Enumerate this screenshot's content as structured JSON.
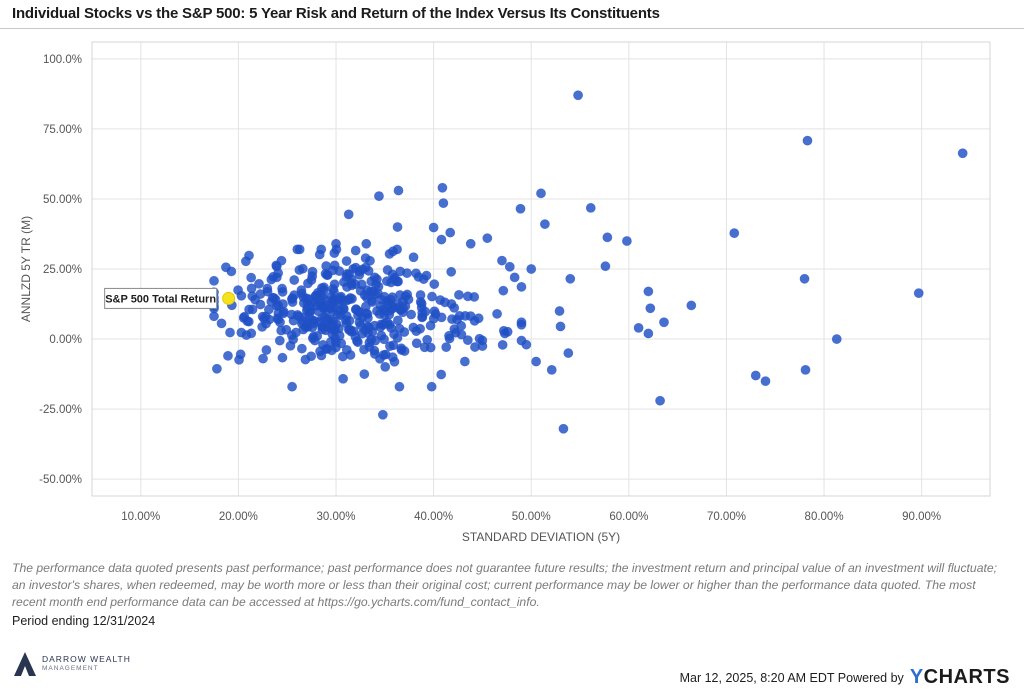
{
  "header": {
    "title": "Individual Stocks vs the S&P 500: 5 Year Risk and Return of the Index Versus Its Constituents"
  },
  "colors": {
    "point": "#1f4fc4",
    "benchmark": "#f4e21f",
    "grid": "#e3e3e3"
  },
  "chart_data": {
    "type": "scatter",
    "xlabel": "STANDARD DEVIATION (5Y)",
    "ylabel": "ANNLZD 5Y TR (M)",
    "xlim": [
      5,
      97
    ],
    "ylim": [
      -56,
      106
    ],
    "x_ticks": [
      10,
      20,
      30,
      40,
      50,
      60,
      70,
      80,
      90
    ],
    "x_tick_labels": [
      "10.00%",
      "20.00%",
      "30.00%",
      "40.00%",
      "50.00%",
      "60.00%",
      "70.00%",
      "80.00%",
      "90.00%"
    ],
    "y_ticks": [
      100,
      75,
      50,
      25,
      0,
      -25,
      -50
    ],
    "y_tick_labels": [
      "100.0%",
      "75.00%",
      "50.00%",
      "25.00%",
      "0.00%",
      "-25.00%",
      "-50.00%"
    ],
    "grid": true,
    "benchmark": {
      "label": "S&P 500 Total Return",
      "x": 19.0,
      "y": 14.5
    },
    "outlier_points": [
      [
        54.8,
        87.0
      ],
      [
        78.3,
        70.8
      ],
      [
        94.2,
        66.3
      ],
      [
        70.8,
        37.8
      ],
      [
        56.1,
        46.8
      ],
      [
        57.8,
        36.3
      ],
      [
        59.8,
        35.0
      ],
      [
        57.6,
        26.0
      ],
      [
        62.0,
        17.0
      ],
      [
        62.2,
        11.0
      ],
      [
        66.4,
        12.0
      ],
      [
        63.6,
        6.0
      ],
      [
        61.0,
        4.0
      ],
      [
        62.0,
        2.0
      ],
      [
        78.0,
        21.5
      ],
      [
        89.7,
        16.4
      ],
      [
        81.3,
        0.0
      ],
      [
        73.0,
        -13.0
      ],
      [
        74.0,
        -15.0
      ],
      [
        78.1,
        -11.0
      ],
      [
        63.2,
        -22.0
      ],
      [
        53.3,
        -32.0
      ],
      [
        53.8,
        -5.0
      ],
      [
        54.0,
        21.5
      ],
      [
        52.1,
        -11.0
      ],
      [
        51.0,
        52.0
      ],
      [
        51.4,
        41.0
      ],
      [
        48.9,
        46.5
      ],
      [
        50.0,
        25.0
      ],
      [
        52.9,
        10.0
      ],
      [
        53.0,
        4.5
      ],
      [
        50.5,
        -8.0
      ],
      [
        49.5,
        -2.0
      ],
      [
        47.0,
        28.0
      ],
      [
        48.3,
        22.0
      ],
      [
        45.5,
        36.0
      ],
      [
        41.8,
        24.0
      ],
      [
        40.9,
        54.0
      ],
      [
        41.0,
        48.5
      ],
      [
        41.7,
        38.0
      ],
      [
        40.0,
        39.8
      ],
      [
        40.8,
        35.5
      ],
      [
        43.8,
        34.0
      ],
      [
        43.2,
        -8.0
      ],
      [
        39.8,
        -17.0
      ],
      [
        34.8,
        -27.0
      ],
      [
        25.5,
        -17.0
      ],
      [
        34.4,
        51.0
      ],
      [
        36.4,
        53.0
      ],
      [
        36.3,
        40.0
      ],
      [
        31.3,
        44.5
      ],
      [
        33.1,
        34.0
      ],
      [
        30.0,
        34.0
      ],
      [
        47.3,
        2.0
      ],
      [
        49.0,
        6.0
      ],
      [
        45.0,
        -2.5
      ],
      [
        46.5,
        9.0
      ],
      [
        44.2,
        6.5
      ],
      [
        36.5,
        -17.0
      ],
      [
        32.9,
        -12.5
      ]
    ],
    "cluster": {
      "count": 420,
      "x_mean": 31.0,
      "x_sd": 6.2,
      "y_mean": 10.0,
      "y_sd": 9.5,
      "x_range": [
        17.5,
        49.0
      ],
      "y_range": [
        -16,
        32
      ],
      "seed": 1337
    }
  },
  "footer": {
    "disclaimer": "The performance data quoted presents past performance; past performance does not guarantee future results; the investment return and principal value of an investment will fluctuate; an investor's shares, when redeemed, may be worth more or less than their original cost; current performance may be lower or higher than the performance data quoted. The most recent month end performance data can be accessed at https://go.ycharts.com/fund_contact_info.",
    "period": "Period ending 12/31/2024",
    "logo_line1": "DARROW WEALTH",
    "logo_line2": "MANAGEMENT",
    "timestamp": "Mar 12, 2025, 8:20 AM EDT Powered by",
    "brand_y": "Y",
    "brand_rest": "CHARTS"
  }
}
